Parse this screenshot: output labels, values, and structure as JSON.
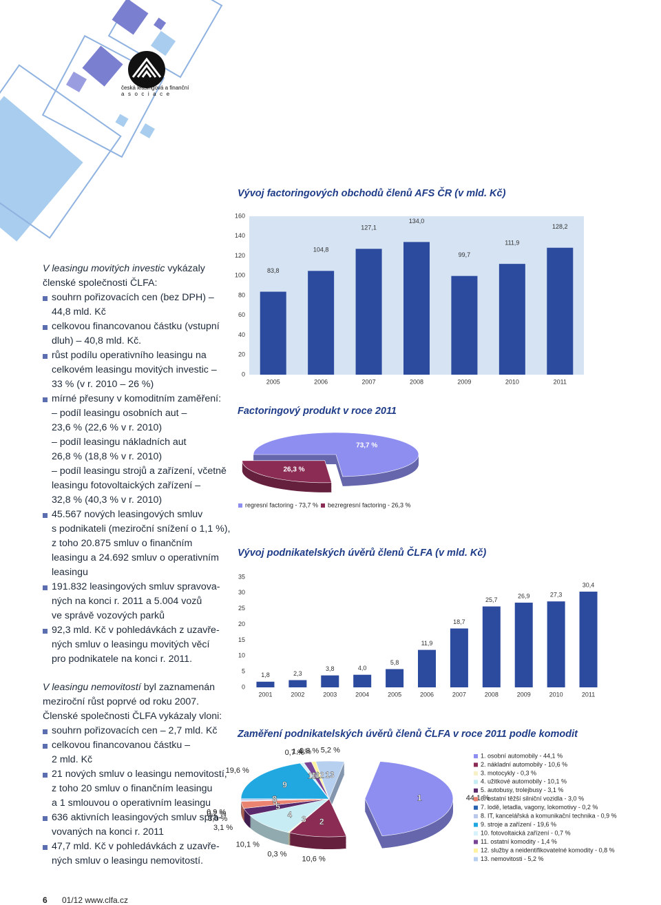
{
  "logo": {
    "line1": "česká leasingová a finanční",
    "line2": "asociace"
  },
  "sections": [
    {
      "intro_italic": "V leasingu movitých investic",
      "intro_lines": [
        "vykázaly",
        "členské společnosti ČLFA:"
      ],
      "items": [
        [
          "souhrn pořizovacích cen (bez DPH) –",
          "44,8 mld. Kč"
        ],
        [
          "celkovou financovanou částku (vstupní",
          "dluh) – 40,8 mld. Kč."
        ],
        [
          "růst podílu operativního leasingu na",
          "celkovém leasingu movitých investic –",
          "33 % (v r. 2010 – 26 %)"
        ],
        [
          "mírné přesuny v komoditním zaměření:",
          "– podíl leasingu osobních aut –",
          "23,6 % (22,6 % v r. 2010)",
          "– podíl leasingu nákladních aut",
          "26,8 % (18,8 % v r. 2010)",
          "– podíl leasingu strojů a zařízení, včetně",
          "leasingu fotovoltaických zařízení –",
          "32,8 % (40,3 % v r. 2010)"
        ],
        [
          "45.567 nových leasingových smluv",
          "s podnikateli (meziroční snížení o 1,1 %),",
          "z toho 20.875 smluv o finančním",
          "leasingu a 24.692 smluv o operativním",
          "leasingu"
        ],
        [
          "191.832 leasingových smluv spravova-",
          "ných na konci r. 2011 a 5.004 vozů",
          "ve správě vozových parků"
        ],
        [
          "92,3 mld. Kč v pohledávkách z uzavře-",
          "ných smluv o leasingu movitých věcí",
          "pro podnikatele na konci r. 2011."
        ]
      ]
    },
    {
      "intro_italic": "V leasingu nemovitostí",
      "intro_lines": [
        "byl zaznamenán",
        "meziroční růst poprvé od roku 2007.",
        "Členské společnosti ČLFA vykázaly vloni:"
      ],
      "items": [
        [
          "souhrn pořizovacích cen – 2,7 mld. Kč"
        ],
        [
          "celkovou financovanou částku –",
          "2 mld. Kč"
        ],
        [
          "21 nových smluv o leasingu nemovitostí,",
          "z toho 20 smluv o finančním leasingu",
          "a 1 smlouvou o operativním leasingu"
        ],
        [
          "636 aktivních leasingových smluv spra-",
          "vovaných na konci r. 2011"
        ],
        [
          "47,7 mld. Kč v pohledávkách z uzavře-",
          "ných smluv o leasingu nemovitostí."
        ]
      ]
    }
  ],
  "footer": {
    "page": "6",
    "text": "01/12 www.clfa.cz"
  },
  "chart_data": [
    {
      "type": "bar",
      "title": "Vývoj factoringových obchodů členů AFS ČR (v mld. Kč)",
      "categories": [
        "2005",
        "2006",
        "2007",
        "2008",
        "2009",
        "2010",
        "2011"
      ],
      "values": [
        83.8,
        104.8,
        127.1,
        134.0,
        99.7,
        111.9,
        128.2
      ],
      "value_labels": [
        "83,8",
        "104,8",
        "127,1",
        "134,0",
        "99,7",
        "111,9",
        "128,2"
      ],
      "color": "#2c4a9e",
      "plot_background": "#d5e3f3",
      "ylim": [
        0,
        160
      ],
      "yticks": [
        0,
        20,
        40,
        60,
        80,
        100,
        120,
        140,
        160
      ]
    },
    {
      "type": "pie",
      "title": "Factoringový produkt v roce 2011",
      "categories": [
        "regresní factoring - 73,7 %",
        "bezregresní factoring - 26,3 %"
      ],
      "values": [
        73.7,
        26.3
      ],
      "value_labels": [
        "73,7 %",
        "26,3 %"
      ],
      "colors": [
        "#8d8ef0",
        "#8b2c55"
      ]
    },
    {
      "type": "bar",
      "title": "Vývoj podnikatelských úvěrů členů ČLFA (v mld. Kč)",
      "categories": [
        "2001",
        "2002",
        "2003",
        "2004",
        "2005",
        "2006",
        "2007",
        "2008",
        "2009",
        "2010",
        "2011"
      ],
      "values": [
        1.8,
        2.3,
        3.8,
        4.0,
        5.8,
        11.9,
        18.7,
        25.7,
        26.9,
        27.3,
        30.4
      ],
      "value_labels": [
        "1,8",
        "2,3",
        "3,8",
        "4,0",
        "5,8",
        "11,9",
        "18,7",
        "25,7",
        "26,9",
        "27,3",
        "30,4"
      ],
      "color": "#2c4a9e",
      "ylim": [
        0,
        35
      ],
      "yticks": [
        0,
        5,
        10,
        15,
        20,
        25,
        30,
        35
      ]
    },
    {
      "type": "pie",
      "title": "Zaměření podnikatelských úvěrů členů ČLFA  v roce 2011 podle komodit",
      "categories": [
        "1. osobní automobily - 44,1 %",
        "2. nákladní automobily - 10,6 %",
        "3. motocykly - 0,3 %",
        "4. užitkové automobily - 10,1 %",
        "5. autobusy, trolejbusy - 3,1 %",
        "6. ostatní těžší silniční vozidla - 3,0 %",
        "7. lodě, letadla, vagony, lokomotivy - 0,2 %",
        "8. IT, kancelářská a komunikační technika - 0,9 %",
        "9. stroje a zařízení - 19,6 %",
        "10. fotovoltaická zařízení - 0,7 %",
        "11. ostatní komodity - 1,4 %",
        "12. služby a neidentifikovatelné komodity - 0,8 %",
        "13. nemovitosti - 5,2 %"
      ],
      "slice_labels": [
        "1",
        "2",
        "3",
        "4",
        "5",
        "6",
        "7",
        "8",
        "9",
        "10",
        "11",
        "12",
        "13"
      ],
      "values": [
        44.1,
        10.6,
        0.3,
        10.1,
        3.1,
        3.0,
        0.2,
        0.9,
        19.6,
        0.7,
        1.4,
        0.8,
        5.2
      ],
      "value_labels": [
        "44,1 %",
        "10,6 %",
        "0,3 %",
        "10,1 %",
        "3,1 %",
        "3,0 %",
        "0,2 %",
        "0,9 %",
        "19,6 %",
        "0,7 %",
        "1,4 %",
        "0,8 %",
        "5,2 %"
      ],
      "colors": [
        "#8d8ef0",
        "#8b2c55",
        "#f6f1c6",
        "#c8ecf3",
        "#5b2a6c",
        "#ea8470",
        "#2a64b0",
        "#b9c8ea",
        "#22a8e0",
        "#d6f2fa",
        "#7a4496",
        "#fff2a0",
        "#b8d0f0"
      ]
    }
  ]
}
